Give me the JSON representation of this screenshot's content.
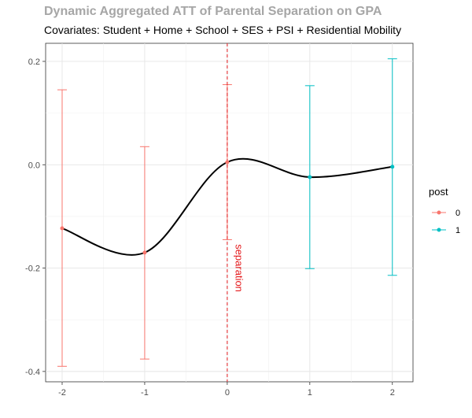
{
  "chart_data": {
    "type": "scatter",
    "title": "Dynamic Aggregated ATT of Parental Separation on GPA",
    "subtitle": "Covariates: Student + Home + School + SES + PSI + Residential Mobility",
    "xlabel": "",
    "ylabel": "",
    "xlim": [
      -2.2,
      2.25
    ],
    "ylim": [
      -0.42,
      0.235
    ],
    "x_ticks": [
      -2,
      -1,
      0,
      1,
      2
    ],
    "x_tick_labels": [
      "-2",
      "-1",
      "0",
      "1",
      "2"
    ],
    "y_ticks": [
      -0.4,
      -0.2,
      0.0,
      0.2
    ],
    "y_tick_labels": [
      "-0.4",
      "-0.2",
      "0.0",
      "0.2"
    ],
    "y_minor_ticks": [
      -0.3,
      -0.1,
      0.1
    ],
    "x_minor_ticks": [
      -1.5,
      -0.5,
      0.5,
      1.5
    ],
    "grid": true,
    "legend": {
      "title": "post",
      "placement": "right",
      "entries": [
        {
          "label": "0",
          "color": "#F8766D"
        },
        {
          "label": "1",
          "color": "#00BFC4"
        }
      ]
    },
    "series": [
      {
        "name": "0",
        "color": "#F8766D",
        "points": [
          {
            "x": -2,
            "y": -0.123,
            "lower": -0.39,
            "upper": 0.145
          },
          {
            "x": -1,
            "y": -0.17,
            "lower": -0.376,
            "upper": 0.035
          },
          {
            "x": 0,
            "y": 0.005,
            "lower": -0.145,
            "upper": 0.155
          }
        ]
      },
      {
        "name": "1",
        "color": "#00BFC4",
        "points": [
          {
            "x": 1,
            "y": -0.024,
            "lower": -0.201,
            "upper": 0.153
          },
          {
            "x": 2,
            "y": -0.004,
            "lower": -0.214,
            "upper": 0.205
          }
        ]
      }
    ],
    "smooth_line": {
      "color": "#000000",
      "x": [
        -2,
        -1,
        0,
        1,
        2
      ],
      "y": [
        -0.123,
        -0.17,
        0.005,
        -0.024,
        -0.004
      ]
    },
    "annotations": [
      {
        "type": "vline",
        "x": 0,
        "color": "#e41a1c",
        "style": "dashed"
      },
      {
        "type": "text",
        "text": "separation",
        "x": 0.1,
        "y": -0.2,
        "color": "#e41a1c",
        "rotation": 90
      }
    ]
  }
}
